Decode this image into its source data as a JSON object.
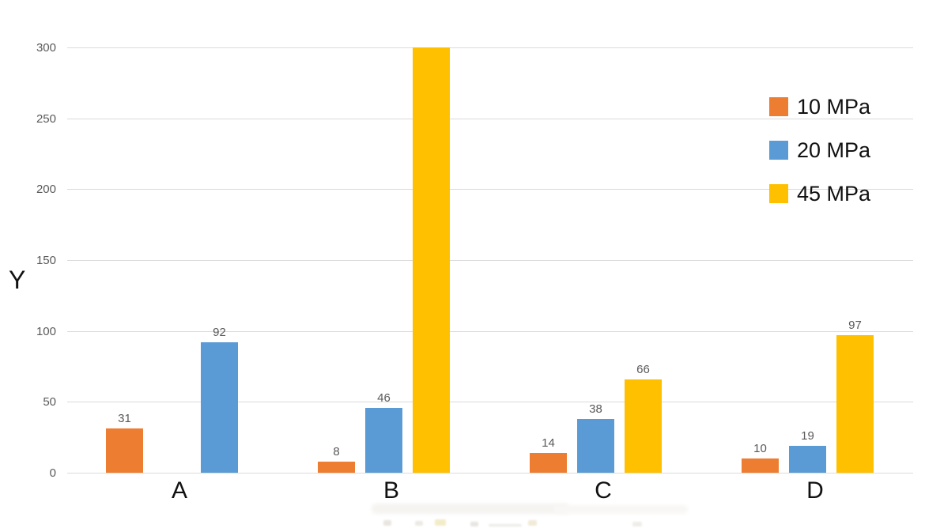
{
  "chart_data": {
    "type": "bar",
    "title": "",
    "xlabel": "",
    "ylabel": "Y",
    "ylim": [
      0,
      300
    ],
    "yticks": [
      0,
      50,
      100,
      150,
      200,
      250,
      300
    ],
    "grid": true,
    "legend_position": "right",
    "categories": [
      "A",
      "B",
      "C",
      "D"
    ],
    "series": [
      {
        "name": "10 MPa",
        "color": "#ED7D31",
        "values": [
          31,
          8,
          14,
          10
        ]
      },
      {
        "name": "20 MPa",
        "color": "#5B9BD5",
        "values": [
          92,
          46,
          38,
          19
        ]
      },
      {
        "name": "45 MPa",
        "color": "#FFC000",
        "values": [
          null,
          300,
          66,
          97
        ]
      }
    ],
    "bars": [
      {
        "category": "A",
        "series": "10 MPa",
        "value": 31,
        "slot": 0,
        "label": "31"
      },
      {
        "category": "A",
        "series": "20 MPa",
        "value": 92,
        "slot": 2,
        "label": "92"
      },
      {
        "category": "B",
        "series": "10 MPa",
        "value": 8,
        "slot": 0,
        "label": "8"
      },
      {
        "category": "B",
        "series": "20 MPa",
        "value": 46,
        "slot": 1,
        "label": "46"
      },
      {
        "category": "B",
        "series": "45 MPa",
        "value": 300,
        "slot": 2,
        "label": ""
      },
      {
        "category": "C",
        "series": "10 MPa",
        "value": 14,
        "slot": 0,
        "label": "14"
      },
      {
        "category": "C",
        "series": "20 MPa",
        "value": 38,
        "slot": 1,
        "label": "38"
      },
      {
        "category": "C",
        "series": "45 MPa",
        "value": 66,
        "slot": 2,
        "label": "66"
      },
      {
        "category": "D",
        "series": "10 MPa",
        "value": 10,
        "slot": 0,
        "label": "10"
      },
      {
        "category": "D",
        "series": "20 MPa",
        "value": 19,
        "slot": 1,
        "label": "19"
      },
      {
        "category": "D",
        "series": "45 MPa",
        "value": 97,
        "slot": 2,
        "label": "97"
      }
    ],
    "annotations": "45 MPa bar of category B reaches the axis top (300) and shows no data label; category A has no 45 MPa bar"
  }
}
